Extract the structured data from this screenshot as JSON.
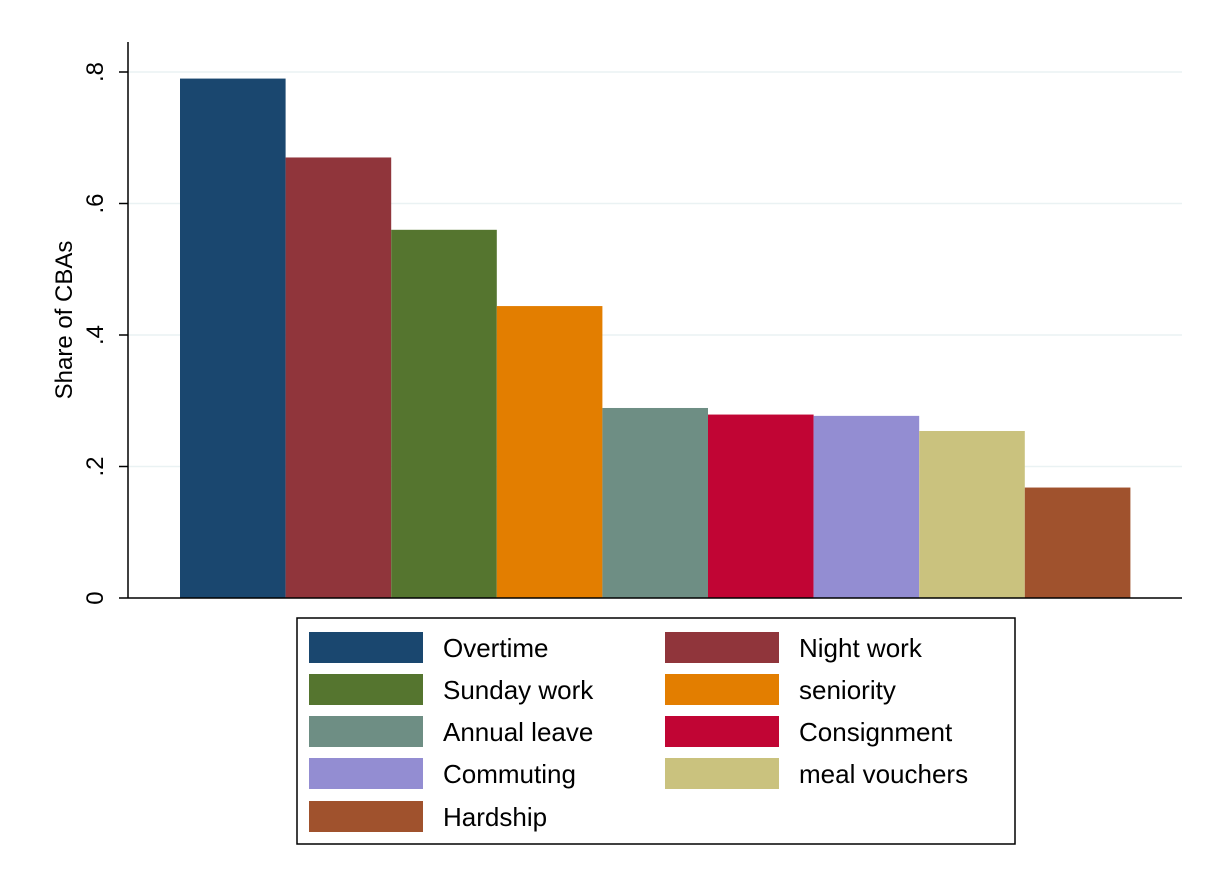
{
  "chart_data": {
    "type": "bar",
    "ylabel": "Share of CBAs",
    "ylim": [
      0,
      0.8
    ],
    "yticks": [
      {
        "value": 0,
        "label": "0"
      },
      {
        "value": 0.2,
        "label": ".2"
      },
      {
        "value": 0.4,
        "label": ".4"
      },
      {
        "value": 0.6,
        "label": ".6"
      },
      {
        "value": 0.8,
        "label": ".8"
      }
    ],
    "grid": true,
    "legend_position": "bottom",
    "series": [
      {
        "name": "Overtime",
        "value": 0.79,
        "color": "#1a476f"
      },
      {
        "name": "Night work",
        "value": 0.67,
        "color": "#90353b"
      },
      {
        "name": "Sunday work",
        "value": 0.56,
        "color": "#55752f"
      },
      {
        "name": "seniority",
        "value": 0.444,
        "color": "#e37e00"
      },
      {
        "name": "Annual leave",
        "value": 0.289,
        "color": "#6e8e84"
      },
      {
        "name": "Consignment",
        "value": 0.279,
        "color": "#c10534"
      },
      {
        "name": "Commuting",
        "value": 0.277,
        "color": "#938dd2"
      },
      {
        "name": "meal vouchers",
        "value": 0.254,
        "color": "#cac27e"
      },
      {
        "name": "Hardship",
        "value": 0.168,
        "color": "#a0522d"
      }
    ]
  }
}
